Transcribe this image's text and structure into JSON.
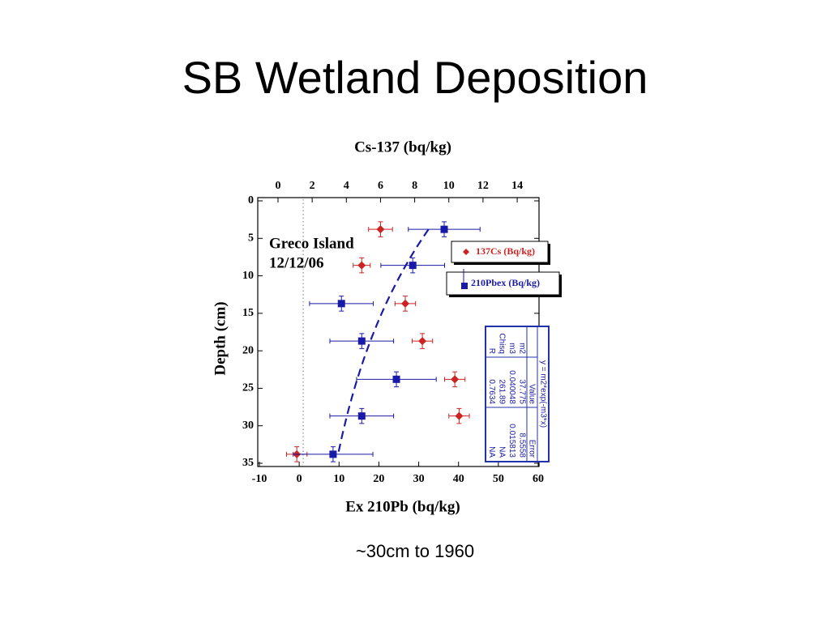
{
  "title": "SB Wetland Deposition",
  "caption": "~30cm to 1960",
  "chart_data": {
    "type": "scatter",
    "x_label": "Ex 210Pb (bq/kg)",
    "x2_label": "Cs-137 (bq/kg)",
    "y_label": "Depth (cm)",
    "xlim": [
      -10,
      60
    ],
    "xticks": [
      -10,
      0,
      10,
      20,
      30,
      40,
      50,
      60
    ],
    "x2lim": [
      -1.09,
      15.23
    ],
    "x2ticks": [
      0,
      2,
      4,
      6,
      8,
      10,
      12,
      14
    ],
    "ylim": [
      0,
      35
    ],
    "yticks": [
      0,
      5,
      10,
      15,
      20,
      25,
      30,
      35
    ],
    "y_inverted": true,
    "reference_x": 1,
    "annotations": [
      "Greco Island",
      "12/12/06"
    ],
    "series": [
      {
        "name": "137Cs (Bq/kg)",
        "color": "#cc2222",
        "marker": "diamond",
        "axis": "x2",
        "x": [
          6.0,
          4.9,
          7.45,
          8.45,
          10.35,
          10.6,
          1.1
        ],
        "y": [
          3.8,
          8.6,
          13.7,
          18.7,
          23.8,
          28.7,
          33.8
        ],
        "xerr": [
          0.7,
          0.5,
          0.6,
          0.6,
          0.6,
          0.6,
          0.6
        ],
        "yerr": [
          1,
          1,
          1,
          1,
          1,
          1,
          1
        ]
      },
      {
        "name": "210Pbex (Bq/kg)",
        "color": "#1a1aa8",
        "marker": "square",
        "x": [
          36.4,
          28.5,
          10.6,
          15.7,
          24.4,
          15.7,
          8.5
        ],
        "y": [
          3.8,
          8.6,
          13.7,
          18.7,
          23.8,
          28.7,
          33.8
        ],
        "xerr": [
          9,
          8,
          8,
          8,
          10,
          8,
          10
        ],
        "yerr": [
          1,
          1,
          1,
          1,
          1,
          1,
          1
        ]
      }
    ],
    "fit": {
      "formula": "y = m2*exp(-m3*x)",
      "columns": [
        "Value",
        "Error"
      ],
      "rows": [
        {
          "name": "m2",
          "value": 37.775,
          "error": 8.5558
        },
        {
          "name": "m3",
          "value": 0.040048,
          "error": 0.015813
        },
        {
          "name": "Chisq",
          "value": 261.89,
          "error": "NA"
        },
        {
          "name": "R",
          "value": 0.7634,
          "error": "NA"
        }
      ]
    }
  }
}
